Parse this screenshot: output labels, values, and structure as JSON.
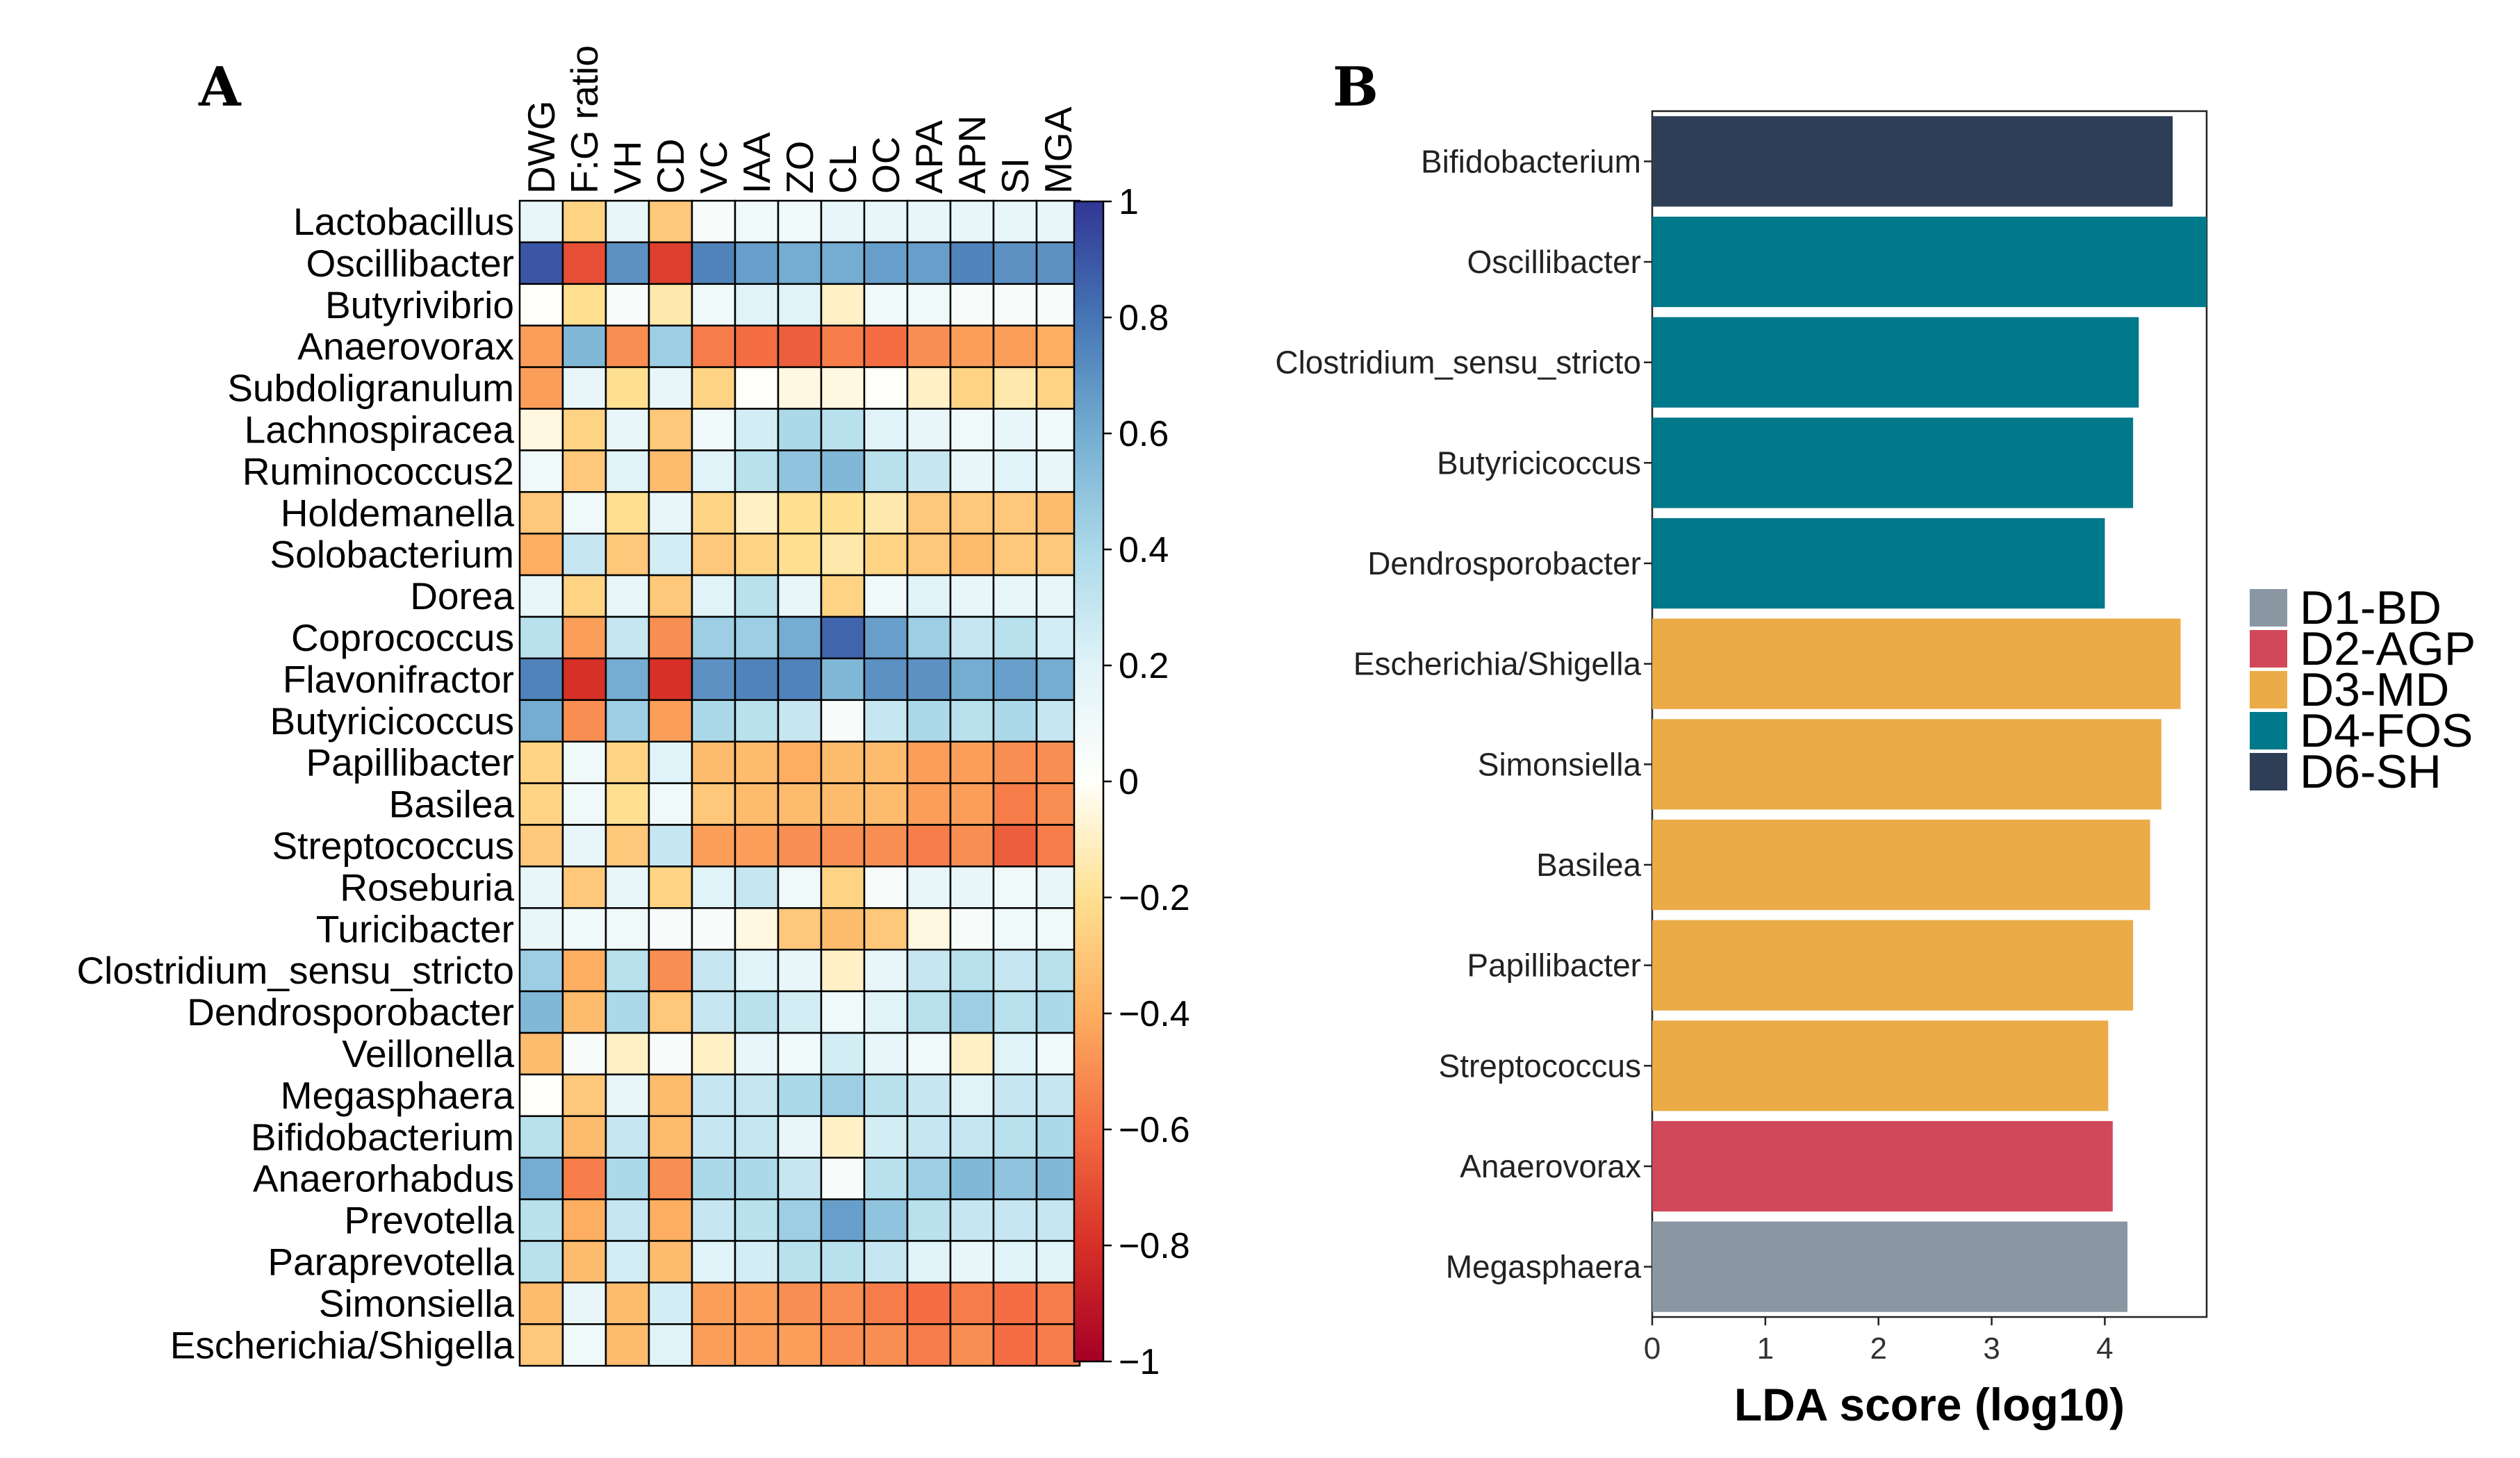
{
  "panels": {
    "a_letter": "A",
    "b_letter": "B"
  },
  "chart_data": [
    {
      "type": "heatmap",
      "panel": "A",
      "columns": [
        "DWG",
        "F:G ratio",
        "VH",
        "CD",
        "VC",
        "IAA",
        "ZO",
        "CL",
        "OC",
        "APA",
        "APN",
        "SI",
        "MGA"
      ],
      "rows": [
        "Lactobacillus",
        "Oscillibacter",
        "Butyrivibrio",
        "Anaerovorax",
        "Subdoligranulum",
        "Lachnospiracea",
        "Ruminococcus2",
        "Holdemanella",
        "Solobacterium",
        "Dorea",
        "Coprococcus",
        "Flavonifractor",
        "Butyricicoccus",
        "Papillibacter",
        "Basilea",
        "Streptococcus",
        "Roseburia",
        "Turicibacter",
        "Clostridium_sensu_stricto",
        "Dendrosporobacter",
        "Veillonella",
        "Megasphaera",
        "Bifidobacterium",
        "Anaerorhabdus",
        "Prevotella",
        "Paraprevotella",
        "Simonsiella",
        "Escherichia/Shigella"
      ],
      "values": [
        [
          0.15,
          -0.25,
          0.15,
          -0.3,
          0.05,
          0.1,
          0.1,
          0.15,
          0.15,
          0.15,
          0.15,
          0.15,
          0.15
        ],
        [
          0.9,
          -0.7,
          0.7,
          -0.75,
          0.75,
          0.65,
          0.6,
          0.6,
          0.65,
          0.65,
          0.75,
          0.7,
          0.7
        ],
        [
          0.0,
          -0.2,
          0.05,
          -0.15,
          0.1,
          0.2,
          0.2,
          -0.1,
          0.1,
          0.1,
          0.05,
          0.05,
          0.05
        ],
        [
          -0.45,
          0.55,
          -0.5,
          0.45,
          -0.55,
          -0.6,
          -0.65,
          -0.55,
          -0.6,
          -0.5,
          -0.45,
          -0.45,
          -0.4
        ],
        [
          -0.45,
          0.15,
          -0.2,
          0.15,
          -0.25,
          0.0,
          -0.05,
          -0.05,
          0.0,
          -0.1,
          -0.25,
          -0.15,
          -0.25
        ],
        [
          -0.05,
          -0.25,
          0.15,
          -0.3,
          0.1,
          0.25,
          0.4,
          0.35,
          0.2,
          0.15,
          0.1,
          0.15,
          0.1
        ],
        [
          0.1,
          -0.3,
          0.2,
          -0.35,
          0.2,
          0.35,
          0.5,
          0.55,
          0.35,
          0.3,
          0.15,
          0.2,
          0.15
        ],
        [
          -0.3,
          0.1,
          -0.2,
          0.15,
          -0.25,
          -0.1,
          -0.2,
          -0.2,
          -0.15,
          -0.3,
          -0.3,
          -0.3,
          -0.35
        ],
        [
          -0.4,
          0.3,
          -0.3,
          0.25,
          -0.3,
          -0.25,
          -0.2,
          -0.15,
          -0.25,
          -0.3,
          -0.35,
          -0.3,
          -0.3
        ],
        [
          0.15,
          -0.25,
          0.15,
          -0.3,
          0.2,
          0.35,
          0.15,
          -0.25,
          0.1,
          0.2,
          0.15,
          0.15,
          0.15
        ],
        [
          0.35,
          -0.45,
          0.3,
          -0.5,
          0.45,
          0.45,
          0.6,
          0.85,
          0.65,
          0.45,
          0.3,
          0.35,
          0.25
        ],
        [
          0.75,
          -0.8,
          0.6,
          -0.8,
          0.7,
          0.75,
          0.75,
          0.55,
          0.7,
          0.7,
          0.6,
          0.65,
          0.6
        ],
        [
          0.6,
          -0.5,
          0.45,
          -0.45,
          0.4,
          0.35,
          0.3,
          0.05,
          0.3,
          0.4,
          0.35,
          0.4,
          0.3
        ],
        [
          -0.25,
          0.1,
          -0.25,
          0.2,
          -0.35,
          -0.35,
          -0.4,
          -0.35,
          -0.35,
          -0.45,
          -0.45,
          -0.5,
          -0.5
        ],
        [
          -0.25,
          0.1,
          -0.2,
          0.1,
          -0.3,
          -0.35,
          -0.35,
          -0.35,
          -0.35,
          -0.45,
          -0.45,
          -0.55,
          -0.5
        ],
        [
          -0.3,
          0.15,
          -0.3,
          0.3,
          -0.45,
          -0.45,
          -0.5,
          -0.5,
          -0.5,
          -0.55,
          -0.5,
          -0.65,
          -0.55
        ],
        [
          0.15,
          -0.3,
          0.15,
          -0.25,
          0.2,
          0.3,
          0.1,
          -0.25,
          0.05,
          0.15,
          0.15,
          0.1,
          0.15
        ],
        [
          0.15,
          0.1,
          0.1,
          0.05,
          0.05,
          -0.05,
          -0.3,
          -0.35,
          -0.3,
          -0.05,
          0.05,
          0.1,
          0.1
        ],
        [
          0.45,
          -0.4,
          0.35,
          -0.5,
          0.3,
          0.2,
          0.15,
          -0.1,
          0.15,
          0.3,
          0.35,
          0.3,
          0.35
        ],
        [
          0.55,
          -0.35,
          0.4,
          -0.3,
          0.3,
          0.35,
          0.25,
          0.1,
          0.2,
          0.35,
          0.45,
          0.35,
          0.4
        ],
        [
          -0.35,
          0.05,
          -0.1,
          0.05,
          -0.1,
          0.15,
          0.1,
          0.25,
          0.15,
          0.1,
          -0.1,
          0.2,
          0.1
        ],
        [
          0.0,
          -0.3,
          0.15,
          -0.35,
          0.3,
          0.3,
          0.4,
          0.45,
          0.35,
          0.3,
          0.2,
          0.3,
          0.3
        ],
        [
          0.35,
          -0.35,
          0.3,
          -0.35,
          0.3,
          0.3,
          0.15,
          -0.1,
          0.25,
          0.3,
          0.3,
          0.35,
          0.4
        ],
        [
          0.6,
          -0.55,
          0.4,
          -0.5,
          0.4,
          0.4,
          0.3,
          0.05,
          0.35,
          0.45,
          0.55,
          0.5,
          0.55
        ],
        [
          0.35,
          -0.4,
          0.3,
          -0.4,
          0.3,
          0.35,
          0.45,
          0.65,
          0.5,
          0.35,
          0.3,
          0.3,
          0.3
        ],
        [
          0.35,
          -0.35,
          0.25,
          -0.35,
          0.2,
          0.25,
          0.35,
          0.35,
          0.3,
          0.2,
          0.15,
          0.2,
          0.2
        ],
        [
          -0.35,
          0.15,
          -0.35,
          0.25,
          -0.45,
          -0.45,
          -0.5,
          -0.5,
          -0.55,
          -0.6,
          -0.55,
          -0.6,
          -0.55
        ],
        [
          -0.3,
          0.1,
          -0.35,
          0.2,
          -0.45,
          -0.45,
          -0.45,
          -0.5,
          -0.5,
          -0.55,
          -0.5,
          -0.6,
          -0.55
        ]
      ],
      "colorbar": {
        "range": [
          -1,
          1
        ],
        "ticks": [
          1,
          0.8,
          0.6,
          0.4,
          0.2,
          0,
          -0.2,
          -0.4,
          -0.6,
          -0.8,
          -1
        ],
        "tick_labels": [
          "1",
          "0.8",
          "0.6",
          "0.4",
          "0.2",
          "0",
          "−0.2",
          "−0.4",
          "−0.6",
          "−0.8",
          "−1"
        ]
      }
    },
    {
      "type": "bar",
      "orientation": "horizontal",
      "panel": "B",
      "xlabel": "LDA score (log10)",
      "xlim": [
        0,
        4.9
      ],
      "xticks": [
        0,
        1,
        2,
        3,
        4
      ],
      "categories": [
        "Bifidobacterium",
        "Oscillibacter",
        "Clostridium_sensu_stricto",
        "Butyricicoccus",
        "Dendrosporobacter",
        "Escherichia/Shigella",
        "Simonsiella",
        "Basilea",
        "Papillibacter",
        "Streptococcus",
        "Anaerovorax",
        "Megasphaera"
      ],
      "values": [
        4.6,
        4.9,
        4.3,
        4.25,
        4.0,
        4.67,
        4.5,
        4.4,
        4.25,
        4.03,
        4.07,
        4.2
      ],
      "groups": [
        "D6-SH",
        "D4-FOS",
        "D4-FOS",
        "D4-FOS",
        "D4-FOS",
        "D3-MD",
        "D3-MD",
        "D3-MD",
        "D3-MD",
        "D3-MD",
        "D2-AGP",
        "D1-BD"
      ],
      "legend": [
        {
          "name": "D1-BD",
          "color": "#8b96a3"
        },
        {
          "name": "D2-AGP",
          "color": "#d1485a"
        },
        {
          "name": "D3-MD",
          "color": "#ebab47"
        },
        {
          "name": "D4-FOS",
          "color": "#00798a"
        },
        {
          "name": "D6-SH",
          "color": "#2e3e56"
        }
      ],
      "legend_position": "right"
    }
  ]
}
